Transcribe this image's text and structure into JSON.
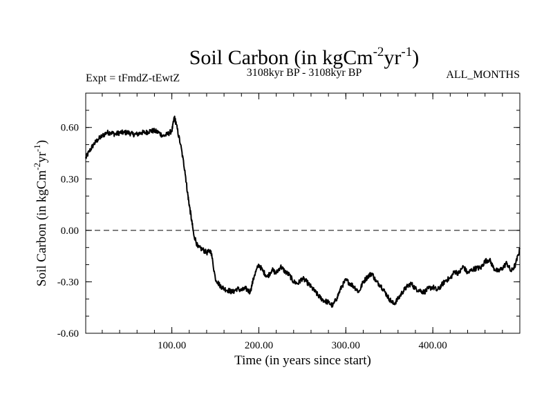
{
  "chart_data": {
    "type": "line",
    "title": {
      "main": "Soil Carbon (in kgCm",
      "exp1": "-2",
      "mid": "yr",
      "exp2": "-1",
      "end": ")"
    },
    "subtitle_left": "Expt = tFmdZ-tEwtZ",
    "subtitle_center": "3108kyr BP - 3108kyr BP",
    "subtitle_right": "ALL_MONTHS",
    "xlabel": "Time (in years since start)",
    "ylabel": {
      "main": "Soil Carbon (in kgCm",
      "exp1": "-2",
      "mid": "yr",
      "exp2": "-1",
      "end": ")"
    },
    "xlim": [
      1,
      500
    ],
    "ylim": [
      -0.6,
      0.8
    ],
    "x_ticks": [
      100,
      200,
      300,
      400
    ],
    "x_tick_labels": [
      "100.00",
      "200.00",
      "300.00",
      "400.00"
    ],
    "y_ticks": [
      -0.6,
      -0.3,
      0.0,
      0.3,
      0.6
    ],
    "y_tick_labels": [
      "-0.60",
      "-0.30",
      "0.00",
      "0.30",
      "0.60"
    ],
    "zero_line": {
      "y": 0.0,
      "style": "dashed"
    },
    "grid": false,
    "series": [
      {
        "x": [
          1,
          5,
          10,
          15,
          20,
          25,
          30,
          35,
          40,
          45,
          50,
          55,
          60,
          65,
          70,
          75,
          80,
          85,
          90,
          95,
          100,
          103,
          105,
          110,
          115,
          118,
          120,
          123,
          125,
          130,
          135,
          140,
          145,
          150,
          155,
          160,
          165,
          170,
          175,
          180,
          185,
          190,
          195,
          200,
          205,
          210,
          215,
          220,
          225,
          230,
          235,
          240,
          245,
          250,
          255,
          260,
          265,
          270,
          275,
          280,
          285,
          290,
          295,
          300,
          305,
          310,
          315,
          320,
          325,
          330,
          335,
          340,
          345,
          350,
          355,
          360,
          365,
          370,
          375,
          380,
          385,
          390,
          395,
          400,
          405,
          410,
          415,
          420,
          425,
          430,
          435,
          440,
          445,
          450,
          455,
          460,
          465,
          470,
          475,
          480,
          485,
          490,
          495,
          500
        ],
        "y": [
          0.42,
          0.46,
          0.5,
          0.53,
          0.55,
          0.57,
          0.57,
          0.56,
          0.57,
          0.57,
          0.57,
          0.56,
          0.56,
          0.57,
          0.57,
          0.58,
          0.58,
          0.57,
          0.55,
          0.56,
          0.58,
          0.66,
          0.62,
          0.5,
          0.35,
          0.22,
          0.15,
          0.05,
          -0.02,
          -0.1,
          -0.11,
          -0.13,
          -0.12,
          -0.28,
          -0.32,
          -0.34,
          -0.35,
          -0.36,
          -0.34,
          -0.35,
          -0.34,
          -0.36,
          -0.26,
          -0.2,
          -0.24,
          -0.27,
          -0.23,
          -0.25,
          -0.21,
          -0.24,
          -0.26,
          -0.3,
          -0.31,
          -0.28,
          -0.3,
          -0.33,
          -0.36,
          -0.39,
          -0.41,
          -0.42,
          -0.44,
          -0.39,
          -0.33,
          -0.29,
          -0.31,
          -0.33,
          -0.36,
          -0.3,
          -0.27,
          -0.25,
          -0.3,
          -0.32,
          -0.36,
          -0.4,
          -0.43,
          -0.4,
          -0.36,
          -0.33,
          -0.31,
          -0.34,
          -0.35,
          -0.36,
          -0.34,
          -0.33,
          -0.35,
          -0.32,
          -0.29,
          -0.28,
          -0.24,
          -0.25,
          -0.21,
          -0.25,
          -0.23,
          -0.22,
          -0.22,
          -0.18,
          -0.17,
          -0.22,
          -0.24,
          -0.22,
          -0.19,
          -0.24,
          -0.2,
          -0.11
        ]
      }
    ]
  }
}
